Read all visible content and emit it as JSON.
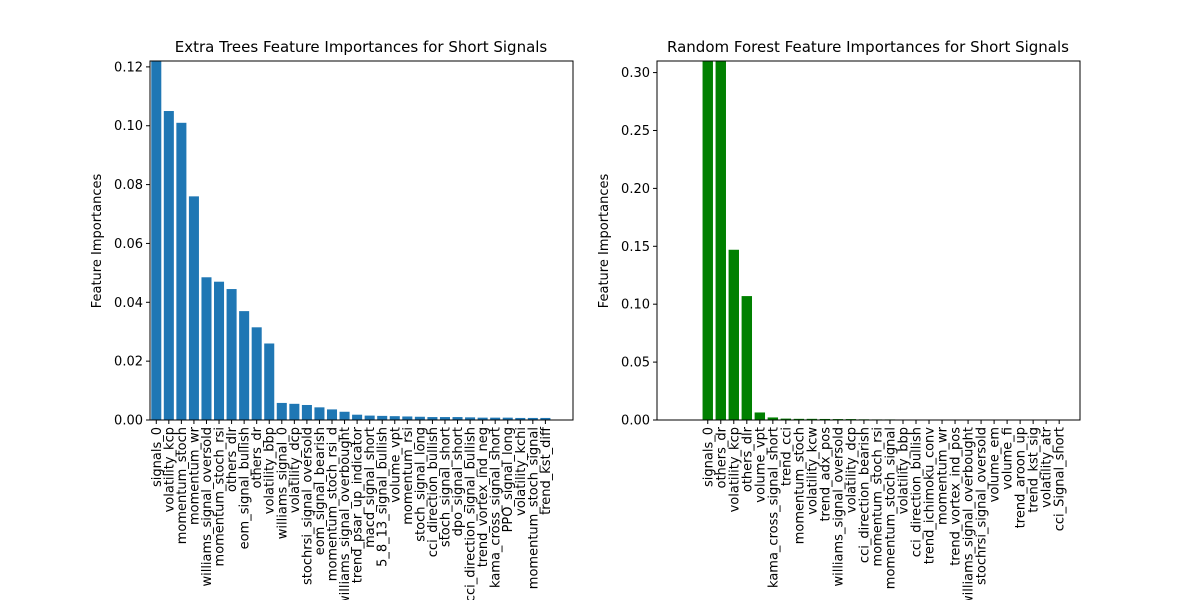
{
  "chart_data": [
    {
      "type": "bar",
      "title": "Extra Trees Feature Importances for Short Signals",
      "xlabel": "",
      "ylabel": "Feature Importances",
      "ylim": [
        0,
        0.122
      ],
      "yticks": [
        "0.00",
        "0.02",
        "0.04",
        "0.06",
        "0.08",
        "0.10",
        "0.12"
      ],
      "bar_color": "#1f77b4",
      "grid": false,
      "categories": [
        "signals_0",
        "volatility_kcp",
        "momentum_stoch",
        "momentum_wr",
        "williams_signal_oversold",
        "momentum_stoch_rsi",
        "others_dlr",
        "eom_signal_bullish",
        "others_dr",
        "volatility_bbp",
        "williams_signal_0",
        "volatility_dcp",
        "stochrsi_signal_oversold",
        "eom_signal_bearish",
        "momentum_stoch_rsi_d",
        "williams_signal_overbought",
        "trend_psar_up_indicator",
        "macd_signal_short",
        "5_8_13_signal_bullish",
        "volume_vpt",
        "momentum_rsi",
        "stoch_signal_long",
        "cci_direction_bullish",
        "stoch_signal_short",
        "dpo_signal_short",
        "cci_direction_signal_bullish",
        "trend_vortex_ind_neg",
        "kama_cross_signal_short",
        "PPO_signal_long",
        "volatility_kchi",
        "momentum_stoch_signal",
        "trend_kst_diff"
      ],
      "values": [
        0.122,
        0.105,
        0.101,
        0.076,
        0.0485,
        0.047,
        0.0445,
        0.037,
        0.0315,
        0.026,
        0.0058,
        0.0055,
        0.0051,
        0.0043,
        0.0036,
        0.0028,
        0.0018,
        0.0015,
        0.0014,
        0.0013,
        0.0012,
        0.0011,
        0.001,
        0.001,
        0.001,
        0.0009,
        0.0008,
        0.0008,
        0.0008,
        0.0007,
        0.0007,
        0.0007
      ]
    },
    {
      "type": "bar",
      "title": "Random Forest Feature Importances for Short Signals",
      "xlabel": "",
      "ylabel": "Feature Importances",
      "ylim": [
        0,
        0.31
      ],
      "yticks": [
        "0.00",
        "0.05",
        "0.10",
        "0.15",
        "0.20",
        "0.25",
        "0.30"
      ],
      "bar_color": "#008000",
      "grid": false,
      "categories": [
        "signals_0",
        "others_dr",
        "volatility_kcp",
        "others_dlr",
        "volume_vpt",
        "kama_cross_signal_short",
        "trend_cci",
        "momentum_stoch",
        "volatility_kcw",
        "trend_adx_pos",
        "williams_signal_oversold",
        "volatility_dcp",
        "cci_direction_bearish",
        "momentum_stoch_rsi",
        "momentum_stoch_signal",
        "volatility_bbp",
        "cci_direction_bullish",
        "trend_ichimoku_conv",
        "momentum_wr",
        "trend_vortex_ind_pos",
        "williams_signal_overbought",
        "stochrsi_signal_oversold",
        "volume_em",
        "volume_fi",
        "trend_aroon_up",
        "trend_kst_sig",
        "volatility_atr",
        "cci_Signal_short"
      ],
      "values": [
        0.31,
        0.31,
        0.147,
        0.107,
        0.0065,
        0.0022,
        0.0012,
        0.001,
        0.001,
        0.0009,
        0.0008,
        0.0008,
        0.0006,
        0.0005,
        0.0005,
        0.0004,
        0.0004,
        0.0004,
        0.0003,
        0.0003,
        0.0003,
        0.0003,
        0.0002,
        0.0002,
        0.0002,
        0.0002,
        0.0001,
        0.0001
      ]
    }
  ]
}
